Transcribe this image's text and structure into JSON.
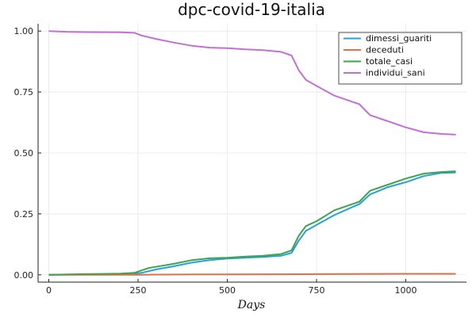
{
  "chart_data": {
    "type": "line",
    "title": "dpc-covid-19-italia",
    "xlabel": "Days",
    "ylabel": "",
    "xlim": [
      -30,
      1170
    ],
    "ylim": [
      -0.03,
      1.03
    ],
    "xticks": [
      0,
      250,
      500,
      750,
      1000
    ],
    "yticks": [
      0.0,
      0.25,
      0.5,
      0.75,
      1.0
    ],
    "xtick_labels": [
      "0",
      "250",
      "500",
      "750",
      "1000"
    ],
    "ytick_labels": [
      "0.00",
      "0.25",
      "0.50",
      "0.75",
      "1.00"
    ],
    "grid": true,
    "legend_position": "top-right",
    "series": [
      {
        "name": "dimessi_guariti",
        "color": "#2a9fdc",
        "x": [
          0,
          100,
          200,
          240,
          260,
          300,
          350,
          400,
          450,
          500,
          550,
          600,
          650,
          680,
          700,
          720,
          750,
          800,
          850,
          870,
          900,
          950,
          1000,
          1050,
          1100,
          1140
        ],
        "y": [
          0,
          0.002,
          0.003,
          0.004,
          0.008,
          0.022,
          0.035,
          0.05,
          0.06,
          0.067,
          0.07,
          0.073,
          0.078,
          0.09,
          0.14,
          0.18,
          0.205,
          0.245,
          0.278,
          0.29,
          0.33,
          0.36,
          0.38,
          0.405,
          0.418,
          0.42
        ]
      },
      {
        "name": "deceduti",
        "color": "#e26f46",
        "x": [
          0,
          250,
          300,
          500,
          750,
          1000,
          1140
        ],
        "y": [
          0,
          0,
          0.001,
          0.002,
          0.003,
          0.004,
          0.004
        ]
      },
      {
        "name": "totale_casi",
        "color": "#3da44d",
        "x": [
          0,
          100,
          200,
          240,
          260,
          280,
          350,
          400,
          450,
          500,
          550,
          600,
          650,
          680,
          700,
          720,
          750,
          800,
          850,
          870,
          900,
          950,
          1000,
          1050,
          1100,
          1140
        ],
        "y": [
          0,
          0.003,
          0.005,
          0.008,
          0.018,
          0.028,
          0.045,
          0.06,
          0.068,
          0.07,
          0.075,
          0.078,
          0.085,
          0.1,
          0.16,
          0.2,
          0.22,
          0.265,
          0.29,
          0.3,
          0.345,
          0.37,
          0.395,
          0.415,
          0.422,
          0.425
        ]
      },
      {
        "name": "individui_sani",
        "color": "#c271d2",
        "x": [
          0,
          50,
          100,
          200,
          240,
          260,
          300,
          350,
          400,
          450,
          500,
          550,
          600,
          650,
          680,
          700,
          720,
          750,
          800,
          850,
          870,
          900,
          950,
          1000,
          1050,
          1100,
          1140
        ],
        "y": [
          1.0,
          0.997,
          0.996,
          0.995,
          0.993,
          0.982,
          0.968,
          0.953,
          0.94,
          0.932,
          0.93,
          0.925,
          0.922,
          0.915,
          0.9,
          0.84,
          0.8,
          0.775,
          0.735,
          0.71,
          0.7,
          0.655,
          0.63,
          0.605,
          0.585,
          0.578,
          0.575
        ]
      }
    ]
  }
}
